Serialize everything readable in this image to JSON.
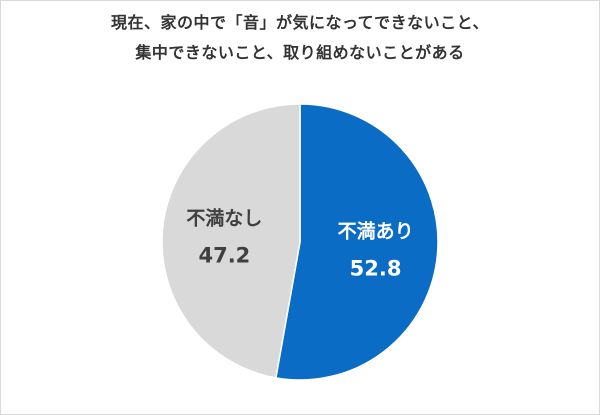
{
  "chart_data": {
    "type": "pie",
    "title_lines": [
      "現在、家の中で「音」が気になってできないこと、",
      "集中できないこと、取り組めないことがある"
    ],
    "slices": [
      {
        "label": "不満あり",
        "value": 52.8,
        "value_text": "52.8",
        "color": "#0a6cc4",
        "text_color": "#ffffff"
      },
      {
        "label": "不満なし",
        "value": 47.2,
        "value_text": "47.2",
        "color": "#d9d9d9",
        "text_color": "#404040"
      }
    ],
    "start": "12 o'clock",
    "direction": "clockwise"
  }
}
